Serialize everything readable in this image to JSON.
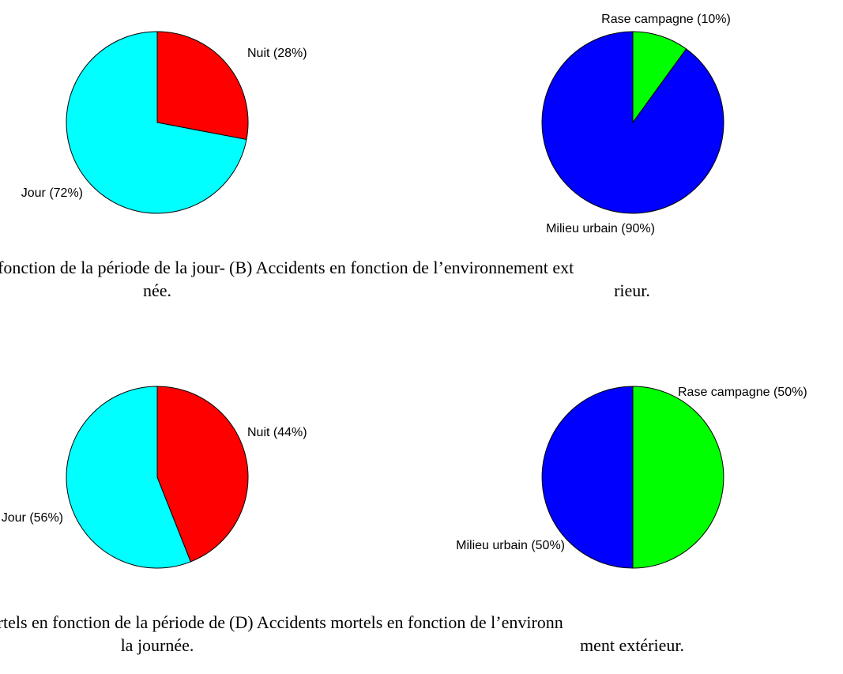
{
  "chart_data": [
    {
      "type": "pie",
      "labels": [
        "Nuit (28%)",
        "Jour (72%)"
      ],
      "values": [
        28,
        72
      ],
      "colors": [
        "#ff0000",
        "#00ffff"
      ],
      "caption": [
        "dents en fonction de la période de la jour-",
        "née."
      ]
    },
    {
      "type": "pie",
      "labels": [
        "Rase campagne (10%)",
        "Milieu urbain (90%)"
      ],
      "values": [
        10,
        90
      ],
      "colors": [
        "#00ff00",
        "#0000ff"
      ],
      "caption": [
        "(B) Accidents en fonction de l’environnement ext",
        "rieur."
      ]
    },
    {
      "type": "pie",
      "labels": [
        "Nuit (44%)",
        "Jour (56%)"
      ],
      "values": [
        44,
        56
      ],
      "colors": [
        "#ff0000",
        "#00ffff"
      ],
      "caption": [
        "dents mortels en fonction de la période de",
        "la journée."
      ]
    },
    {
      "type": "pie",
      "labels": [
        "Rase campagne (50%)",
        "Milieu urbain (50%)"
      ],
      "values": [
        50,
        50
      ],
      "colors": [
        "#00ff00",
        "#0000ff"
      ],
      "caption": [
        "(D) Accidents mortels en fonction de l’environn",
        "ment extérieur."
      ]
    }
  ]
}
